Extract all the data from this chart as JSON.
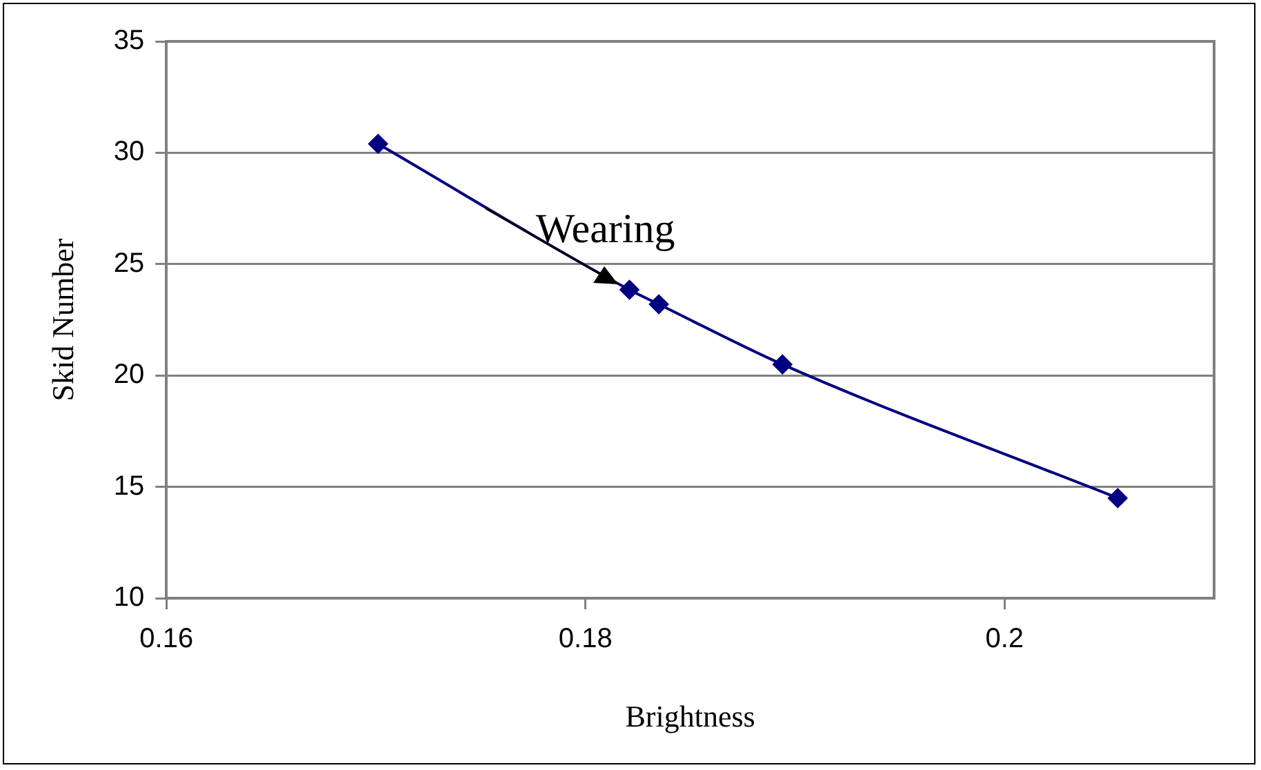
{
  "chart_data": {
    "type": "line",
    "xlabel": "Brightness",
    "ylabel": "Skid Number",
    "annotations": [
      "Wearing"
    ],
    "x": [
      0.1701,
      0.1821,
      0.1835,
      0.1894,
      0.2054
    ],
    "series": [
      {
        "color": "#000080",
        "values": [
          30.4,
          23.85,
          23.2,
          20.5,
          14.5
        ]
      }
    ],
    "xlim": [
      0.16,
      0.21
    ],
    "xticks": [
      0.16,
      0.18,
      0.2
    ],
    "ylim": [
      10,
      35
    ],
    "yticks": [
      10,
      15,
      20,
      25,
      30,
      35
    ],
    "grid": "y",
    "legend": false,
    "marker": "diamond",
    "line_style": "solid"
  }
}
